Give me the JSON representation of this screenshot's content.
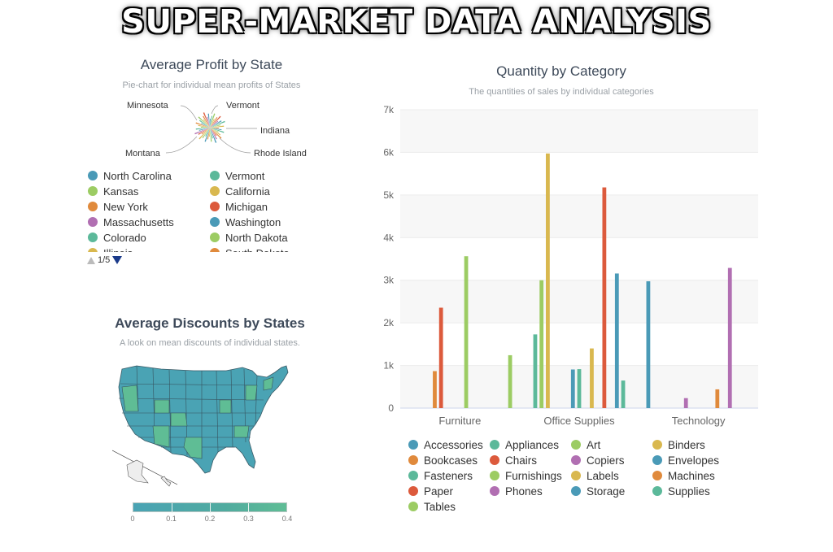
{
  "page": {
    "title": "SUPER-MARKET DATA ANALYSIS"
  },
  "pie": {
    "title": "Average Profit by State",
    "subtitle": "Pie-chart for individual mean profits of States",
    "callouts": [
      "Minnesota",
      "Vermont",
      "Indiana",
      "Rhode Island",
      "Montana"
    ],
    "legend": [
      {
        "name": "North Carolina",
        "color": "#4a9ab7"
      },
      {
        "name": "Vermont",
        "color": "#5cb99a"
      },
      {
        "name": "Kansas",
        "color": "#9ccc63"
      },
      {
        "name": "California",
        "color": "#d9b84f"
      },
      {
        "name": "New York",
        "color": "#e08a3c"
      },
      {
        "name": "Michigan",
        "color": "#dc5a3c"
      },
      {
        "name": "Massachusetts",
        "color": "#b16fb2"
      },
      {
        "name": "Washington",
        "color": "#4a9ab7"
      },
      {
        "name": "Colorado",
        "color": "#5cb99a"
      },
      {
        "name": "North Dakota",
        "color": "#9ccc63"
      },
      {
        "name": "Illinois",
        "color": "#d9b84f"
      },
      {
        "name": "South Dakota",
        "color": "#e08a3c"
      }
    ],
    "pager": "1/5"
  },
  "map": {
    "title": "Average Discounts by States",
    "subtitle": "A look on mean discounts of individual states.",
    "scale_labels": [
      "0",
      "0.1",
      "0.2",
      "0.3",
      "0.4"
    ],
    "scale_colors": [
      "#4aa3b4",
      "#5fbd95"
    ]
  },
  "chart_data": {
    "type": "bar",
    "title": "Quantity by Category",
    "subtitle": "The quantities of sales by individual categories",
    "categories": [
      "Furniture",
      "Office Supplies",
      "Technology"
    ],
    "ylim": [
      0,
      7000
    ],
    "yticks": [
      "0",
      "1k",
      "2k",
      "3k",
      "4k",
      "5k",
      "6k",
      "7k"
    ],
    "grid": true,
    "legend_position": "bottom",
    "series": [
      {
        "name": "Accessories",
        "color": "#4a9ab7",
        "values": [
          null,
          null,
          2976
        ]
      },
      {
        "name": "Appliances",
        "color": "#5cb99a",
        "values": [
          null,
          1729,
          null
        ]
      },
      {
        "name": "Art",
        "color": "#9ccc63",
        "values": [
          null,
          3000,
          null
        ]
      },
      {
        "name": "Binders",
        "color": "#d9b84f",
        "values": [
          null,
          5974,
          null
        ]
      },
      {
        "name": "Bookcases",
        "color": "#e08a3c",
        "values": [
          868,
          null,
          null
        ]
      },
      {
        "name": "Chairs",
        "color": "#dc5a3c",
        "values": [
          2356,
          null,
          null
        ]
      },
      {
        "name": "Copiers",
        "color": "#b16fb2",
        "values": [
          null,
          null,
          234
        ]
      },
      {
        "name": "Envelopes",
        "color": "#4a9ab7",
        "values": [
          null,
          906,
          null
        ]
      },
      {
        "name": "Fasteners",
        "color": "#5cb99a",
        "values": [
          null,
          914,
          null
        ]
      },
      {
        "name": "Furnishings",
        "color": "#9ccc63",
        "values": [
          3563,
          null,
          null
        ]
      },
      {
        "name": "Labels",
        "color": "#d9b84f",
        "values": [
          null,
          1400,
          null
        ]
      },
      {
        "name": "Machines",
        "color": "#e08a3c",
        "values": [
          null,
          null,
          440
        ]
      },
      {
        "name": "Paper",
        "color": "#dc5a3c",
        "values": [
          null,
          5178,
          null
        ]
      },
      {
        "name": "Phones",
        "color": "#b16fb2",
        "values": [
          null,
          null,
          3289
        ]
      },
      {
        "name": "Storage",
        "color": "#4a9ab7",
        "values": [
          null,
          3158,
          null
        ]
      },
      {
        "name": "Supplies",
        "color": "#5cb99a",
        "values": [
          null,
          647,
          null
        ]
      },
      {
        "name": "Tables",
        "color": "#9ccc63",
        "values": [
          1241,
          null,
          null
        ]
      }
    ]
  }
}
